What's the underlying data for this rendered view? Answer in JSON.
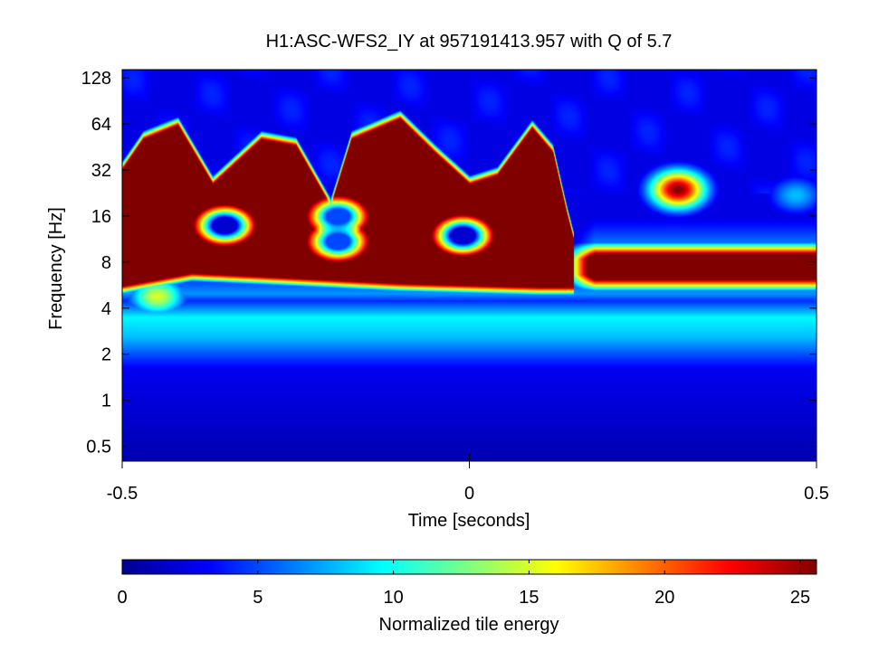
{
  "chart_data": {
    "type": "heatmap",
    "title": "H1:ASC-WFS2_IY at 957191413.957 with Q of 5.7",
    "xlabel": "Time [seconds]",
    "ylabel": "Frequency [Hz]",
    "x_ticks": [
      "-0.5",
      "0",
      "0.5"
    ],
    "x_tick_values": [
      -0.5,
      0,
      0.5
    ],
    "xlim": [
      -0.5,
      0.5
    ],
    "y_scale": "log2",
    "y_ticks": [
      "0.5",
      "1",
      "2",
      "4",
      "8",
      "16",
      "32",
      "64",
      "128"
    ],
    "y_tick_values": [
      0.5,
      1,
      2,
      4,
      8,
      16,
      32,
      64,
      128
    ],
    "ylim": [
      0.4,
      145
    ],
    "colorbar": {
      "label": "Normalized tile energy",
      "ticks": [
        "0",
        "5",
        "10",
        "15",
        "20",
        "25"
      ],
      "tick_values": [
        0,
        5,
        10,
        15,
        20,
        25
      ],
      "range": [
        0,
        25.6
      ],
      "colormap": "jet"
    },
    "ridge_upper_edge_hz": {
      "t": [
        -0.5,
        -0.47,
        -0.42,
        -0.37,
        -0.3,
        -0.25,
        -0.2,
        -0.17,
        -0.1,
        -0.05,
        0.0,
        0.04,
        0.09,
        0.12,
        0.14,
        0.15
      ],
      "f": [
        35,
        55,
        68,
        28,
        55,
        50,
        20,
        55,
        75,
        45,
        28,
        32,
        65,
        45,
        18,
        12
      ]
    },
    "ridge_lower_edge_hz": {
      "t": [
        -0.5,
        -0.4,
        -0.3,
        -0.1,
        0.1,
        0.3,
        0.4,
        0.5
      ],
      "f": [
        5.2,
        6.3,
        6.0,
        5.4,
        5.1,
        5.1,
        5.6,
        6.0
      ]
    },
    "ridge_tail": {
      "t_start": 0.15,
      "t_end": 0.5,
      "f_center": 7.5
    },
    "holes": [
      {
        "t": -0.353,
        "f": 14,
        "energy": 2
      },
      {
        "t": -0.19,
        "f": 16,
        "energy": 5
      },
      {
        "t": -0.19,
        "f": 11,
        "energy": 5
      },
      {
        "t": -0.01,
        "f": 12,
        "energy": 2
      }
    ],
    "blobs": [
      {
        "t": 0.3,
        "f": 24,
        "energy": 25.6
      },
      {
        "t": 0.47,
        "f": 22,
        "energy": 8
      },
      {
        "t": -0.45,
        "f": 4.8,
        "energy": 15
      }
    ],
    "background": {
      "bands": [
        {
          "f": 0.4,
          "energy": 1.2
        },
        {
          "f": 1.6,
          "energy": 2.8
        },
        {
          "f": 2.6,
          "energy": 8
        },
        {
          "f": 3.5,
          "energy": 9.5
        },
        {
          "f": 4.5,
          "energy": 4.2
        },
        {
          "f": 5.0,
          "energy": 7
        }
      ],
      "high_freq_energy": 2.5
    }
  }
}
